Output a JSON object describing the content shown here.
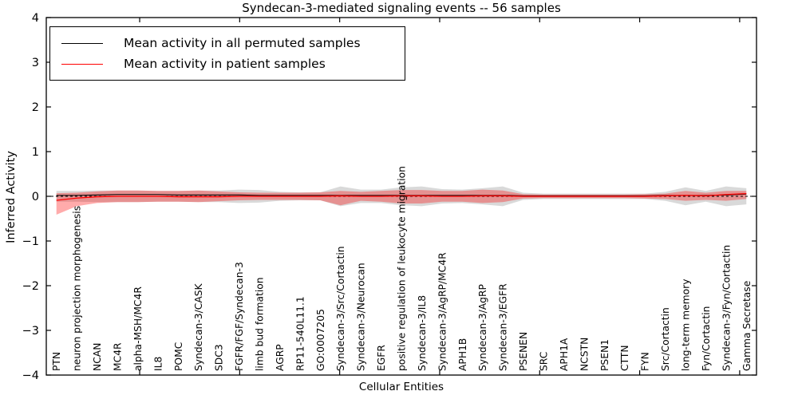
{
  "title": "Syndecan-3-mediated signaling events -- 56 samples",
  "axes": {
    "x_label": "Cellular Entities",
    "y_label": "Inferred Activity",
    "y_ticks": [
      "4",
      "3",
      "2",
      "1",
      "0",
      "−1",
      "−2",
      "−3",
      "−4"
    ]
  },
  "legend": {
    "items": [
      {
        "label": "Mean activity in all permuted samples",
        "color": "#000000"
      },
      {
        "label": "Mean activity in patient samples",
        "color": "#ff0000"
      }
    ]
  },
  "chart_data": {
    "type": "line",
    "title": "Syndecan-3-mediated signaling events -- 56 samples",
    "xlabel": "Cellular Entities",
    "ylabel": "Inferred Activity",
    "ylim": [
      -4,
      4
    ],
    "grid": false,
    "legend_position": "upper left",
    "zero_line": {
      "style": "dashed",
      "color": "#000000",
      "y": 0
    },
    "categories": [
      "PTN",
      "neuron projection morphogenesis",
      "NCAN",
      "MC4R",
      "alpha-MSH/MC4R",
      "IL8",
      "POMC",
      "Syndecan-3/CASK",
      "SDC3",
      "FGFR/FGF/Syndecan-3",
      "limb bud formation",
      "AGRP",
      "RP11-540L11.1",
      "GO:0007205",
      "Syndecan-3/Src/Cortactin",
      "Syndecan-3/Neurocan",
      "EGFR",
      "positive regulation of leukocyte migration",
      "Syndecan-3/IL8",
      "Syndecan-3/AgRP/MC4R",
      "APH1B",
      "Syndecan-3/AgRP",
      "Syndecan-3/EGFR",
      "PSENEN",
      "SRC",
      "APH1A",
      "NCSTN",
      "PSEN1",
      "CTTN",
      "FYN",
      "Src/Cortactin",
      "long-term memory",
      "Fyn/Cortactin",
      "Syndecan-3/Fyn/Cortactin",
      "Gamma Secretase"
    ],
    "series": [
      {
        "name": "Mean activity in all permuted samples",
        "color": "#000000",
        "values": [
          0.02,
          0.02,
          0.03,
          0.04,
          0.04,
          0.04,
          0.03,
          0.03,
          0.03,
          0.03,
          0.02,
          0.02,
          0.02,
          0.02,
          0.02,
          0.02,
          0.02,
          0.02,
          0.02,
          0.02,
          0.02,
          0.02,
          0.02,
          0.01,
          0.01,
          0.01,
          0.01,
          0.01,
          0.01,
          0.01,
          0.02,
          0.02,
          0.02,
          0.03,
          0.05
        ]
      },
      {
        "name": "Mean activity in patient samples",
        "color": "#ff0000",
        "values": [
          -0.09,
          -0.04,
          -0.01,
          0.0,
          0.0,
          0.0,
          -0.01,
          -0.01,
          -0.01,
          0.0,
          0.0,
          0.0,
          0.0,
          0.0,
          0.01,
          0.0,
          0.0,
          0.01,
          0.01,
          0.0,
          0.0,
          0.01,
          0.01,
          0.0,
          0.0,
          0.0,
          0.0,
          0.0,
          0.0,
          0.0,
          0.01,
          0.02,
          0.01,
          0.04,
          0.06
        ]
      }
    ],
    "bands": [
      {
        "name": "permuted-sample-range",
        "color": "#000000",
        "opacity": 0.15,
        "upper": [
          0.12,
          0.12,
          0.13,
          0.13,
          0.13,
          0.12,
          0.12,
          0.13,
          0.13,
          0.15,
          0.14,
          0.1,
          0.09,
          0.09,
          0.22,
          0.15,
          0.15,
          0.2,
          0.22,
          0.16,
          0.15,
          0.18,
          0.22,
          0.08,
          0.06,
          0.06,
          0.06,
          0.06,
          0.06,
          0.06,
          0.1,
          0.2,
          0.12,
          0.22,
          0.18
        ],
        "lower": [
          -0.12,
          -0.12,
          -0.13,
          -0.13,
          -0.13,
          -0.12,
          -0.12,
          -0.13,
          -0.13,
          -0.15,
          -0.14,
          -0.1,
          -0.09,
          -0.09,
          -0.22,
          -0.15,
          -0.15,
          -0.2,
          -0.22,
          -0.16,
          -0.15,
          -0.18,
          -0.22,
          -0.08,
          -0.06,
          -0.06,
          -0.06,
          -0.06,
          -0.06,
          -0.06,
          -0.1,
          -0.2,
          -0.12,
          -0.22,
          -0.18
        ]
      },
      {
        "name": "patient-sample-range",
        "color": "#ff0000",
        "opacity": 0.33,
        "upper": [
          0.07,
          0.08,
          0.11,
          0.13,
          0.13,
          0.12,
          0.12,
          0.13,
          0.11,
          0.09,
          0.08,
          0.08,
          0.08,
          0.09,
          0.12,
          0.1,
          0.12,
          0.14,
          0.14,
          0.12,
          0.12,
          0.15,
          0.13,
          0.05,
          0.04,
          0.04,
          0.04,
          0.04,
          0.04,
          0.05,
          0.06,
          0.12,
          0.08,
          0.12,
          0.12
        ],
        "lower": [
          -0.41,
          -0.22,
          -0.15,
          -0.13,
          -0.13,
          -0.12,
          -0.12,
          -0.13,
          -0.11,
          -0.09,
          -0.08,
          -0.08,
          -0.08,
          -0.09,
          -0.2,
          -0.1,
          -0.12,
          -0.16,
          -0.16,
          -0.12,
          -0.12,
          -0.15,
          -0.13,
          -0.05,
          -0.04,
          -0.04,
          -0.04,
          -0.04,
          -0.04,
          -0.05,
          -0.06,
          -0.1,
          -0.08,
          -0.1,
          -0.06
        ]
      }
    ]
  }
}
